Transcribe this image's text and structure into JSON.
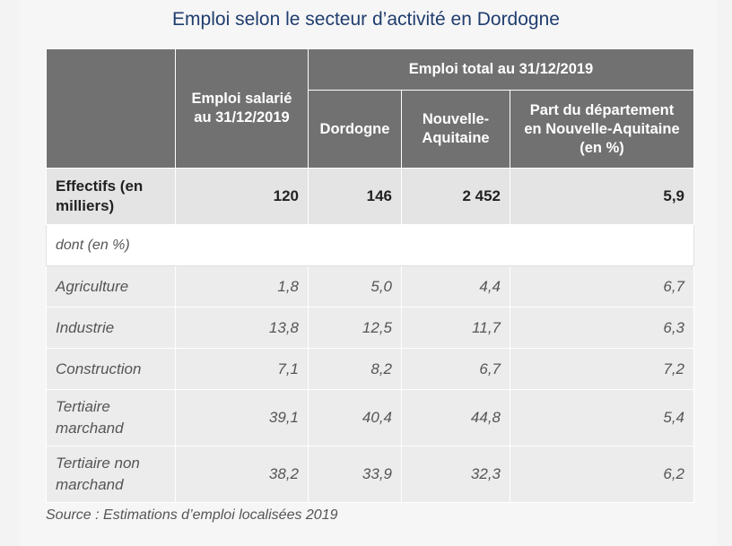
{
  "title": "Emploi selon le secteur d’activité en Dordogne",
  "header": {
    "col1": "Emploi salarié au 31/12/2019",
    "group": "Emploi total au 31/12/2019",
    "col2": "Dordogne",
    "col3": "Nouvelle-Aquitaine",
    "col4": "Part du département en Nouvelle-Aquitaine (en %)"
  },
  "effectifs": {
    "label": "Effectifs (en milliers)",
    "values": [
      "120",
      "146",
      "2 452",
      "5,9"
    ]
  },
  "dont_label": "dont (en %)",
  "rows": [
    {
      "label": "Agriculture",
      "values": [
        "1,8",
        "5,0",
        "4,4",
        "6,7"
      ]
    },
    {
      "label": "Industrie",
      "values": [
        "13,8",
        "12,5",
        "11,7",
        "6,3"
      ]
    },
    {
      "label": "Construction",
      "values": [
        "7,1",
        "8,2",
        "6,7",
        "7,2"
      ]
    },
    {
      "label": "Tertiaire marchand",
      "values": [
        "39,1",
        "40,4",
        "44,8",
        "5,4"
      ]
    },
    {
      "label": "Tertiaire non marchand",
      "values": [
        "38,2",
        "33,9",
        "32,3",
        "6,2"
      ]
    }
  ],
  "source": "Source : Estimations d’emploi localisées 2019"
}
